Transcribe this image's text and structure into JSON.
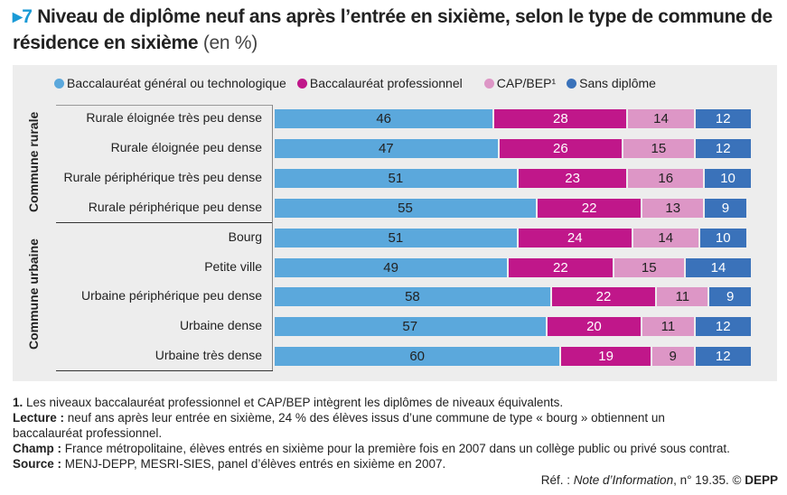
{
  "title": {
    "number": "7",
    "text": "Niveau de diplôme neuf ans après l’entrée en sixième, selon le type de commune de résidence en sixième",
    "unit": "(en %)"
  },
  "chart_data": {
    "type": "bar",
    "orientation": "horizontal",
    "stacked": true,
    "xlim": [
      0,
      100
    ],
    "legend_position": "top",
    "series": [
      {
        "name": "Baccalauréat général ou technologique",
        "color": "#5ba8dc",
        "values": [
          46,
          47,
          51,
          55,
          51,
          49,
          58,
          57,
          60
        ]
      },
      {
        "name": "Baccalauréat professionnel",
        "color": "#c0178a",
        "values": [
          28,
          26,
          23,
          22,
          24,
          22,
          22,
          20,
          19
        ]
      },
      {
        "name": "CAP/BEP¹",
        "color": "#dd96c6",
        "values": [
          14,
          15,
          16,
          13,
          14,
          15,
          11,
          11,
          9
        ]
      },
      {
        "name": "Sans diplôme",
        "color": "#3a72ba",
        "values": [
          12,
          12,
          10,
          9,
          10,
          14,
          9,
          12,
          12
        ]
      }
    ],
    "categories": [
      "Rurale éloignée très peu dense",
      "Rurale éloignée peu dense",
      "Rurale périphérique très peu dense",
      "Rurale périphérique peu dense",
      "Bourg",
      "Petite ville",
      "Urbaine périphérique peu dense",
      "Urbaine dense",
      "Urbaine très dense"
    ],
    "groups": [
      {
        "label": "Commune rurale",
        "count": 4
      },
      {
        "label": "Commune urbaine",
        "count": 5
      }
    ]
  },
  "footnotes": {
    "note1_label": "1.",
    "note1": " Les niveaux baccalauréat professionnel et CAP/BEP intègrent les diplômes de niveaux équivalents.",
    "lecture_label": "Lecture :",
    "lecture": " neuf ans après leur entrée en sixième, 24 % des élèves issus d’une commune de type « bourg » obtiennent un baccalauréat professionnel.",
    "champ_label": "Champ :",
    "champ": " France métropolitaine, élèves entrés en sixième pour la première fois en 2007 dans un collège public ou privé sous contrat.",
    "source_label": "Source :",
    "source": " MENJ-DEPP, MESRI-SIES, panel d’élèves entrés en sixième en 2007.",
    "ref_prefix": "Réf. : ",
    "ref_italic": "Note d’Information",
    "ref_suffix": ", n° 19.35. © ",
    "ref_bold": "DEPP"
  }
}
